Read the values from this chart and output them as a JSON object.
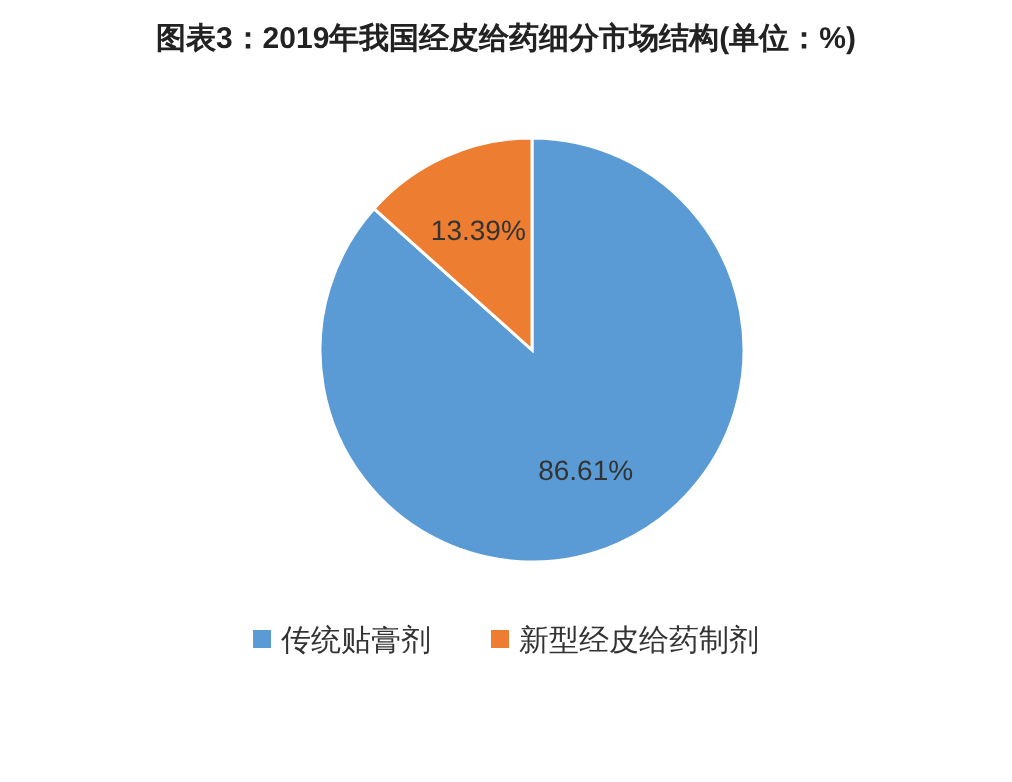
{
  "chart_data": {
    "type": "pie",
    "title": "图表3：2019年我国经皮给药细分市场结构(单位：%)",
    "categories": [
      "传统贴膏剂",
      "新型经皮给药制剂"
    ],
    "values": [
      86.61,
      13.39
    ],
    "colors": [
      "#5b9bd5",
      "#ed7d31"
    ],
    "value_labels": [
      "86.61%",
      "13.39%"
    ],
    "legend": "bottom"
  }
}
